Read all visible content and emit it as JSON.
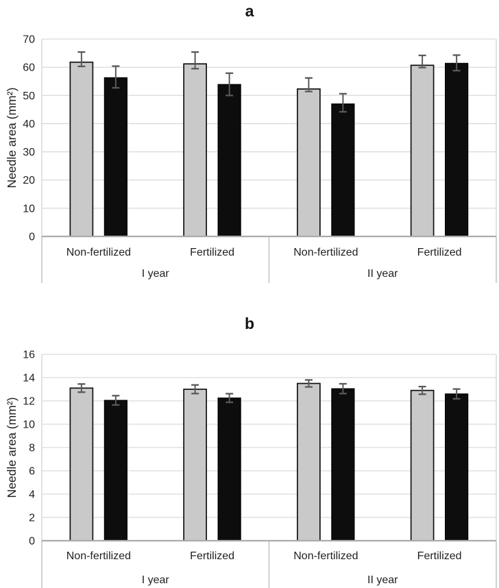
{
  "figure": {
    "background": "#ffffff"
  },
  "colors": {
    "gray_fill": "#c9c9c9",
    "gray_stroke": "#111111",
    "black_fill": "#0d0d0d",
    "black_stroke": "#000000",
    "gridline": "#d9d9d9",
    "plot_border": "#d2d2d2",
    "baseline": "#ababab",
    "divider": "#bdbdbd",
    "error_bar": "#595959",
    "text": "#1f1f1f"
  },
  "chart_data": [
    {
      "id": "a",
      "type": "bar",
      "title": "a",
      "ylabel": "Needle area (mm²)",
      "ylim": [
        0,
        70
      ],
      "ytick_step": 10,
      "yticks": [
        0,
        10,
        20,
        30,
        40,
        50,
        60,
        70
      ],
      "grid": true,
      "legend": "none",
      "series_order": [
        "gray",
        "black"
      ],
      "groups": [
        {
          "label": "I year",
          "categories": [
            {
              "label": "Non-fertilized",
              "bars": [
                {
                  "series": "gray",
                  "value": 61.8,
                  "err_up": 3.6,
                  "err_dn": 1.5
                },
                {
                  "series": "black",
                  "value": 56.3,
                  "err_up": 4.1,
                  "err_dn": 3.6
                }
              ]
            },
            {
              "label": "Fertilized",
              "bars": [
                {
                  "series": "gray",
                  "value": 61.2,
                  "err_up": 4.2,
                  "err_dn": 1.7
                },
                {
                  "series": "black",
                  "value": 53.9,
                  "err_up": 4.0,
                  "err_dn": 3.9
                }
              ]
            }
          ]
        },
        {
          "label": "II year",
          "categories": [
            {
              "label": "Non-fertilized",
              "bars": [
                {
                  "series": "gray",
                  "value": 52.3,
                  "err_up": 3.9,
                  "err_dn": 0.9
                },
                {
                  "series": "black",
                  "value": 47.0,
                  "err_up": 3.6,
                  "err_dn": 2.8
                }
              ]
            },
            {
              "label": "Fertilized",
              "bars": [
                {
                  "series": "gray",
                  "value": 60.7,
                  "err_up": 3.5,
                  "err_dn": 0.8
                },
                {
                  "series": "black",
                  "value": 61.4,
                  "err_up": 2.9,
                  "err_dn": 2.6
                }
              ]
            }
          ]
        }
      ]
    },
    {
      "id": "b",
      "type": "bar",
      "title": "b",
      "ylabel": "Needle area (mm²)",
      "ylim": [
        0,
        16
      ],
      "ytick_step": 2,
      "yticks": [
        0,
        2,
        4,
        6,
        8,
        10,
        12,
        14,
        16
      ],
      "grid": true,
      "legend": "none",
      "series_order": [
        "gray",
        "black"
      ],
      "groups": [
        {
          "label": "I year",
          "categories": [
            {
              "label": "Non-fertilized",
              "bars": [
                {
                  "series": "gray",
                  "value": 13.1,
                  "err_up": 0.35,
                  "err_dn": 0.35
                },
                {
                  "series": "black",
                  "value": 12.05,
                  "err_up": 0.4,
                  "err_dn": 0.4
                }
              ]
            },
            {
              "label": "Fertilized",
              "bars": [
                {
                  "series": "gray",
                  "value": 13.0,
                  "err_up": 0.37,
                  "err_dn": 0.37
                },
                {
                  "series": "black",
                  "value": 12.25,
                  "err_up": 0.37,
                  "err_dn": 0.37
                }
              ]
            }
          ]
        },
        {
          "label": "II year",
          "categories": [
            {
              "label": "Non-fertilized",
              "bars": [
                {
                  "series": "gray",
                  "value": 13.5,
                  "err_up": 0.3,
                  "err_dn": 0.3
                },
                {
                  "series": "black",
                  "value": 13.05,
                  "err_up": 0.42,
                  "err_dn": 0.42
                }
              ]
            },
            {
              "label": "Fertilized",
              "bars": [
                {
                  "series": "gray",
                  "value": 12.9,
                  "err_up": 0.33,
                  "err_dn": 0.33
                },
                {
                  "series": "black",
                  "value": 12.6,
                  "err_up": 0.42,
                  "err_dn": 0.42
                }
              ]
            }
          ]
        }
      ]
    }
  ]
}
